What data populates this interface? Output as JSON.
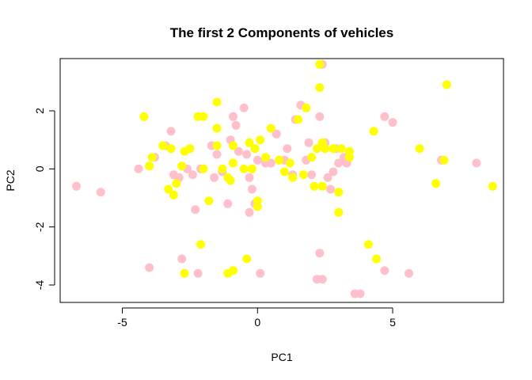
{
  "chart_data": {
    "type": "scatter",
    "title": "The first 2 Components of vehicles",
    "xlabel": "PC1",
    "ylabel": "PC2",
    "xlim": [
      -7.3,
      9.1
    ],
    "ylim": [
      -4.6,
      3.8
    ],
    "x_ticks": [
      -5,
      0,
      5
    ],
    "x_tick_labels": [
      "-5",
      "0",
      "5"
    ],
    "y_ticks": [
      -4,
      -2,
      0,
      2
    ],
    "y_tick_labels": [
      "-4",
      "-2",
      "0",
      "2"
    ],
    "grid": false,
    "legend": "none",
    "colors": {
      "pink": "#ffc0cb",
      "yellow": "#ffff00"
    },
    "series": [
      {
        "color": "pink",
        "points": [
          [
            -6.7,
            -0.6
          ],
          [
            -5.8,
            -0.8
          ],
          [
            -4.4,
            0.0
          ],
          [
            -4.0,
            0.1
          ],
          [
            -3.8,
            0.4
          ],
          [
            -4.0,
            -3.4
          ],
          [
            -3.4,
            0.8
          ],
          [
            -3.2,
            1.3
          ],
          [
            -3.1,
            -0.2
          ],
          [
            -2.9,
            -0.3
          ],
          [
            -2.8,
            -3.1
          ],
          [
            -2.6,
            0.0
          ],
          [
            -2.4,
            -0.2
          ],
          [
            -2.3,
            -1.4
          ],
          [
            -2.2,
            -3.6
          ],
          [
            -2.1,
            0.0
          ],
          [
            -1.7,
            0.8
          ],
          [
            -1.6,
            -0.3
          ],
          [
            -1.5,
            0.5
          ],
          [
            -1.3,
            -0.1
          ],
          [
            -1.1,
            -1.2
          ],
          [
            -1.0,
            1.0
          ],
          [
            -0.9,
            1.8
          ],
          [
            -0.8,
            1.5
          ],
          [
            -0.7,
            0.6
          ],
          [
            -0.5,
            2.1
          ],
          [
            -0.4,
            0.5
          ],
          [
            -0.3,
            -0.3
          ],
          [
            -0.2,
            -0.7
          ],
          [
            -0.3,
            -1.5
          ],
          [
            -0.1,
            -1.2
          ],
          [
            0.0,
            0.3
          ],
          [
            0.1,
            -3.6
          ],
          [
            0.3,
            0.2
          ],
          [
            0.5,
            0.2
          ],
          [
            0.7,
            1.2
          ],
          [
            1.0,
            0.3
          ],
          [
            1.1,
            0.7
          ],
          [
            1.3,
            -0.2
          ],
          [
            1.4,
            1.7
          ],
          [
            1.6,
            2.2
          ],
          [
            1.8,
            0.3
          ],
          [
            1.9,
            0.9
          ],
          [
            2.0,
            -0.2
          ],
          [
            2.1,
            -0.6
          ],
          [
            2.2,
            -3.8
          ],
          [
            2.3,
            -2.9
          ],
          [
            2.3,
            1.8
          ],
          [
            2.4,
            -3.8
          ],
          [
            2.4,
            3.6
          ],
          [
            2.5,
            0.9
          ],
          [
            2.6,
            -0.3
          ],
          [
            2.7,
            -0.7
          ],
          [
            2.8,
            -0.1
          ],
          [
            2.9,
            0.7
          ],
          [
            3.0,
            0.2
          ],
          [
            3.2,
            0.4
          ],
          [
            3.3,
            0.2
          ],
          [
            3.6,
            -4.3
          ],
          [
            3.8,
            -4.3
          ],
          [
            4.7,
            1.8
          ],
          [
            4.7,
            -3.5
          ],
          [
            5.0,
            1.6
          ],
          [
            5.6,
            -3.6
          ],
          [
            6.8,
            0.3
          ],
          [
            8.1,
            0.2
          ]
        ]
      },
      {
        "color": "yellow",
        "points": [
          [
            -4.2,
            1.8
          ],
          [
            -3.9,
            0.4
          ],
          [
            -4.0,
            0.1
          ],
          [
            -3.5,
            0.8
          ],
          [
            -3.3,
            -0.7
          ],
          [
            -3.2,
            0.7
          ],
          [
            -3.1,
            -0.9
          ],
          [
            -3.0,
            -0.5
          ],
          [
            -2.8,
            0.1
          ],
          [
            -2.7,
            0.6
          ],
          [
            -2.7,
            -3.6
          ],
          [
            -2.5,
            0.7
          ],
          [
            -2.2,
            1.8
          ],
          [
            -2.1,
            -2.6
          ],
          [
            -2.0,
            1.8
          ],
          [
            -2.0,
            0.0
          ],
          [
            -1.8,
            -1.1
          ],
          [
            -1.5,
            2.3
          ],
          [
            -1.5,
            1.4
          ],
          [
            -1.5,
            0.8
          ],
          [
            -1.3,
            0.0
          ],
          [
            -1.1,
            -3.6
          ],
          [
            -1.1,
            -0.3
          ],
          [
            -1.0,
            -0.4
          ],
          [
            -0.9,
            0.2
          ],
          [
            -0.9,
            0.8
          ],
          [
            -0.9,
            -3.5
          ],
          [
            -0.5,
            0.0
          ],
          [
            -0.4,
            -3.1
          ],
          [
            -0.3,
            0.9
          ],
          [
            -0.2,
            0.0
          ],
          [
            -0.1,
            0.7
          ],
          [
            0.0,
            -1.1
          ],
          [
            0.0,
            -1.3
          ],
          [
            0.1,
            1.0
          ],
          [
            0.3,
            0.4
          ],
          [
            0.5,
            1.4
          ],
          [
            0.8,
            0.3
          ],
          [
            1.0,
            -0.1
          ],
          [
            1.2,
            0.2
          ],
          [
            1.3,
            -0.3
          ],
          [
            1.5,
            1.7
          ],
          [
            1.7,
            -0.2
          ],
          [
            1.8,
            2.1
          ],
          [
            2.0,
            0.4
          ],
          [
            2.1,
            -0.6
          ],
          [
            2.2,
            0.7
          ],
          [
            2.3,
            2.8
          ],
          [
            2.3,
            3.6
          ],
          [
            2.4,
            0.9
          ],
          [
            2.4,
            -0.6
          ],
          [
            2.5,
            0.7
          ],
          [
            2.8,
            0.7
          ],
          [
            3.0,
            -1.5
          ],
          [
            3.0,
            -0.8
          ],
          [
            3.1,
            0.7
          ],
          [
            3.4,
            0.6
          ],
          [
            3.4,
            0.4
          ],
          [
            4.1,
            -2.6
          ],
          [
            4.3,
            1.3
          ],
          [
            4.4,
            -3.1
          ],
          [
            6.0,
            0.7
          ],
          [
            6.6,
            -0.5
          ],
          [
            6.9,
            0.3
          ],
          [
            7.0,
            2.9
          ],
          [
            8.7,
            -0.6
          ]
        ]
      }
    ]
  }
}
